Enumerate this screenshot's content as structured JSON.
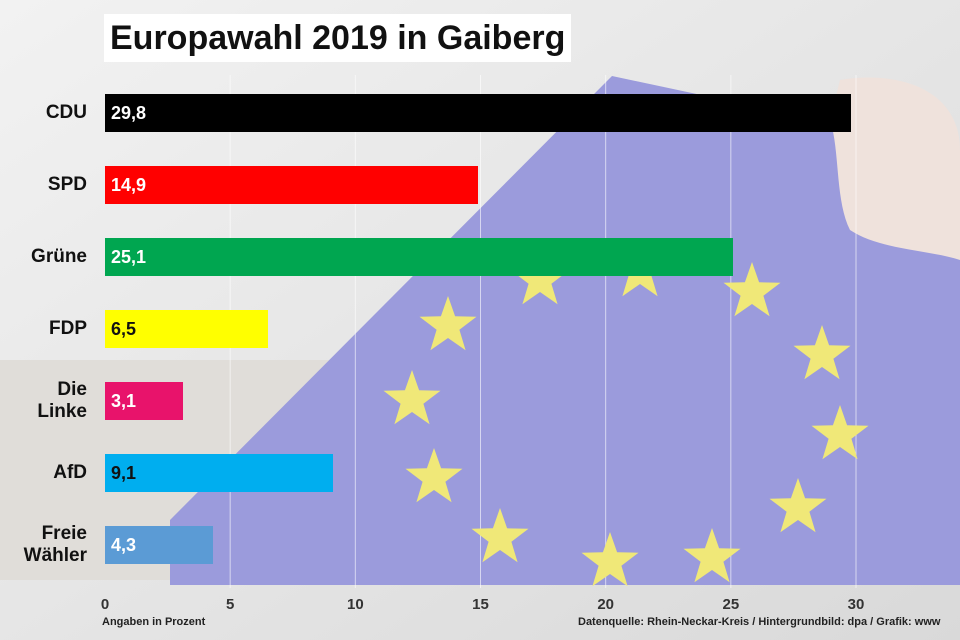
{
  "title": "Europawahl 2019 in Gaiberg",
  "chart_data": {
    "type": "bar",
    "orientation": "horizontal",
    "categories": [
      "CDU",
      "SPD",
      "Grüne",
      "FDP",
      "Die Linke",
      "AfD",
      "Freie Wähler"
    ],
    "category_lines": [
      [
        "CDU"
      ],
      [
        "SPD"
      ],
      [
        "Grüne"
      ],
      [
        "FDP"
      ],
      [
        "Die",
        "Linke"
      ],
      [
        "AfD"
      ],
      [
        "Freie",
        "Wähler"
      ]
    ],
    "values": [
      29.8,
      14.9,
      25.1,
      6.5,
      3.1,
      9.1,
      4.3
    ],
    "value_labels": [
      "29,8",
      "14,9",
      "25,1",
      "6,5",
      "3,1",
      "9,1",
      "4,3"
    ],
    "colors": [
      "#000000",
      "#ff0000",
      "#00a650",
      "#ffff00",
      "#e8136b",
      "#00aeef",
      "#5b9bd5"
    ],
    "label_colors": [
      "#ffffff",
      "#ffffff",
      "#ffffff",
      "#111111",
      "#ffffff",
      "#111111",
      "#ffffff"
    ],
    "xlim": [
      0,
      34
    ],
    "xticks": [
      0,
      5,
      10,
      15,
      20,
      25,
      30
    ],
    "grid": true,
    "xlabel": "Angaben in Prozent",
    "source": "Datenquelle: Rhein-Neckar-Kreis  / Hintergrundbild: dpa / Grafik: www"
  }
}
